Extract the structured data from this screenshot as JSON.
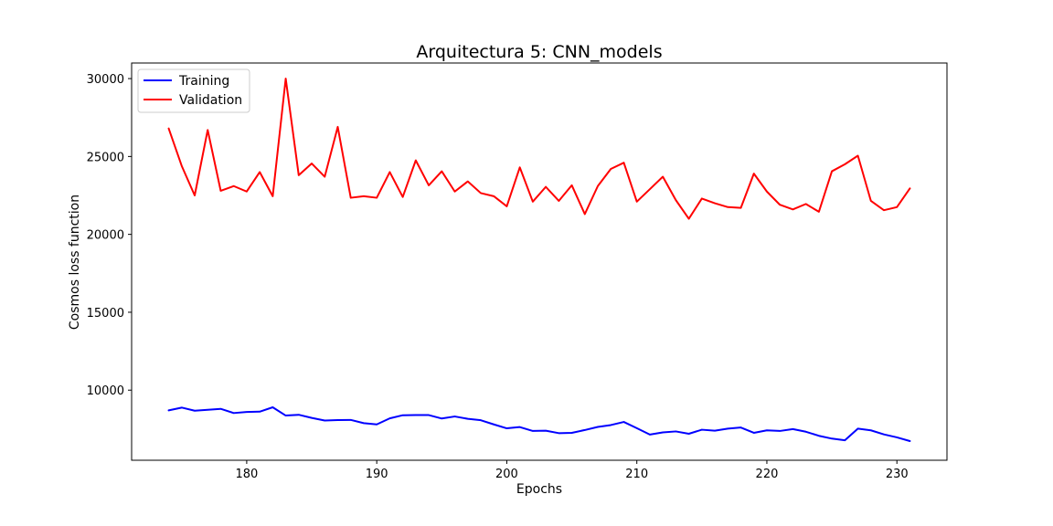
{
  "chart_data": {
    "type": "line",
    "title": "Arquitectura 5: CNN_models",
    "xlabel": "Epochs",
    "ylabel": "Cosmos loss function",
    "xlim": [
      171.15,
      233.85
    ],
    "ylim": [
      5500,
      31000
    ],
    "x_ticks": [
      180,
      190,
      200,
      210,
      220,
      230
    ],
    "y_ticks": [
      10000,
      15000,
      20000,
      25000,
      30000
    ],
    "grid": false,
    "legend_position": "top-left",
    "x": [
      174,
      175,
      176,
      177,
      178,
      179,
      180,
      181,
      182,
      183,
      184,
      185,
      186,
      187,
      188,
      189,
      190,
      191,
      192,
      193,
      194,
      195,
      196,
      197,
      198,
      199,
      200,
      201,
      202,
      203,
      204,
      205,
      206,
      207,
      208,
      209,
      210,
      211,
      212,
      213,
      214,
      215,
      216,
      217,
      218,
      219,
      220,
      221,
      222,
      223,
      224,
      225,
      226,
      227,
      228,
      229,
      230,
      231
    ],
    "series": [
      {
        "name": "Training",
        "color": "#0000ff",
        "values": [
          8700,
          8880,
          8680,
          8740,
          8800,
          8530,
          8600,
          8620,
          8900,
          8370,
          8420,
          8220,
          8050,
          8080,
          8090,
          7880,
          7800,
          8190,
          8390,
          8400,
          8400,
          8180,
          8310,
          8160,
          8070,
          7800,
          7550,
          7630,
          7380,
          7400,
          7240,
          7260,
          7440,
          7640,
          7760,
          7960,
          7560,
          7150,
          7290,
          7350,
          7200,
          7460,
          7400,
          7530,
          7600,
          7260,
          7420,
          7380,
          7500,
          7330,
          7070,
          6890,
          6780,
          7530,
          7420,
          7160,
          6970,
          6730
        ]
      },
      {
        "name": "Validation",
        "color": "#ff0000",
        "values": [
          26800,
          24400,
          22500,
          26700,
          22800,
          23100,
          22750,
          24000,
          22450,
          30000,
          23800,
          24550,
          23700,
          26900,
          22350,
          22450,
          22350,
          24000,
          22400,
          24750,
          23150,
          24050,
          22750,
          23400,
          22650,
          22450,
          21800,
          24300,
          22100,
          23050,
          22150,
          23150,
          21300,
          23100,
          24200,
          24600,
          22100,
          22900,
          23700,
          22200,
          21000,
          22300,
          22000,
          21750,
          21700,
          23900,
          22750,
          21900,
          21600,
          21950,
          21450,
          24050,
          24500,
          25050,
          22150,
          21550,
          21750,
          22950
        ]
      }
    ]
  }
}
